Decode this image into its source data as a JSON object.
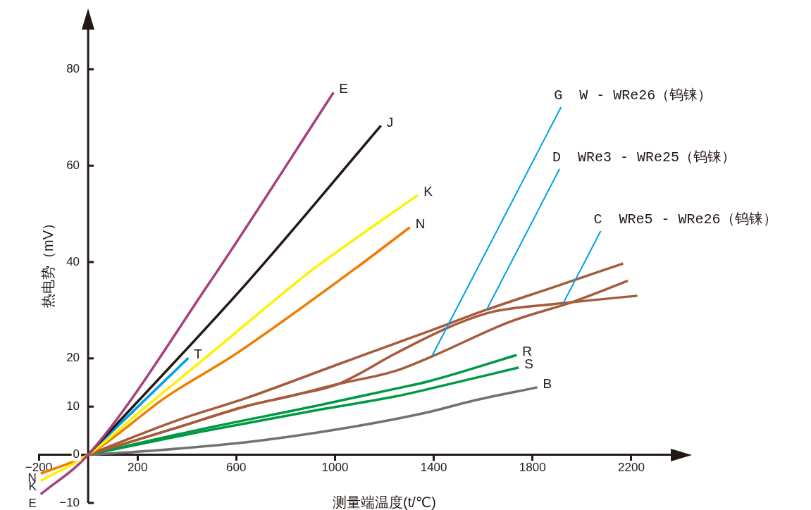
{
  "chart_data": {
    "type": "line",
    "xlabel": "测量端温度(t/℃)",
    "ylabel": "热电势（mV）",
    "xlim": [
      -200,
      2400
    ],
    "ylim": [
      -10,
      90
    ],
    "xticks": [
      -200,
      200,
      600,
      1000,
      1400,
      1800,
      2200
    ],
    "yticks": [
      -10,
      0,
      10,
      20,
      40,
      60,
      80
    ],
    "grid": false,
    "legend": false,
    "marker": "none",
    "series": [
      {
        "name": "E",
        "color": "#a4417f",
        "x": [
          -192,
          0,
          494,
          994
        ],
        "values": [
          -8.2,
          0,
          35.9,
          75.2
        ]
      },
      {
        "name": "J",
        "color": "#231815",
        "x": [
          0,
          647,
          1186
        ],
        "values": [
          0,
          35.9,
          68.3
        ]
      },
      {
        "name": "K",
        "color": "#fff100",
        "x": [
          -192,
          0,
          225,
          458,
          697,
          919,
          1336
        ],
        "values": [
          -5.4,
          0,
          9.6,
          19.4,
          29.6,
          38.8,
          53.9
        ]
      },
      {
        "name": "N",
        "color": "#ee7d00",
        "x": [
          -192,
          0,
          319,
          597,
          1086,
          1303
        ],
        "values": [
          -3.9,
          0,
          12.1,
          20.9,
          38.8,
          47.2
        ]
      },
      {
        "name": "T",
        "color": "#00a0e9",
        "x": [
          0,
          406
        ],
        "values": [
          0,
          20.1
        ]
      },
      {
        "color": "#a65b3c",
        "x": [
          0,
          364,
          642,
          1014,
          1244,
          1383,
          1614,
          1892,
          2167
        ],
        "values": [
          0,
          7.2,
          11.8,
          18.8,
          23.1,
          25.7,
          30.1,
          34.9,
          39.7
        ]
      },
      {
        "color": "#a65b3c",
        "x": [
          0,
          364,
          642,
          828,
          1014,
          1244,
          1458,
          1633,
          1892,
          2225
        ],
        "values": [
          0,
          5.7,
          10.1,
          12.3,
          14.7,
          21.0,
          26.4,
          29.6,
          31.3,
          33.0
        ]
      },
      {
        "color": "#a65b3c",
        "x": [
          0,
          364,
          642,
          828,
          1014,
          1244,
          1392,
          1708,
          1967,
          2186
        ],
        "values": [
          0,
          5.7,
          10.1,
          12.3,
          14.7,
          17.4,
          20.4,
          27.6,
          31.8,
          36.1
        ]
      },
      {
        "name": "R",
        "color": "#009944",
        "x": [
          0,
          458,
          919,
          1244,
          1383,
          1736
        ],
        "values": [
          0,
          5.3,
          10.1,
          13.7,
          15.3,
          20.7
        ]
      },
      {
        "name": "S",
        "color": "#009944",
        "x": [
          0,
          458,
          919,
          1244,
          1383,
          1744
        ],
        "values": [
          0,
          4.8,
          9.2,
          12.1,
          13.7,
          18.1
        ]
      },
      {
        "name": "B",
        "color": "#727171",
        "x": [
          0,
          272,
          642,
          1014,
          1383,
          1550,
          1819
        ],
        "values": [
          0,
          0.9,
          2.6,
          5.3,
          8.9,
          11.1,
          14.0
        ]
      }
    ],
    "annotations": [
      {
        "text": "G  W - WRe26（钨铼）",
        "x": 1392,
        "y": 20.4
      },
      {
        "text": "D  WRe3 - WRe25（钨铼）",
        "x": 1614,
        "y": 30.1
      },
      {
        "text": "C  WRe5 - WRe26（钨铼）",
        "x": 1925,
        "y": 31.5
      }
    ]
  }
}
